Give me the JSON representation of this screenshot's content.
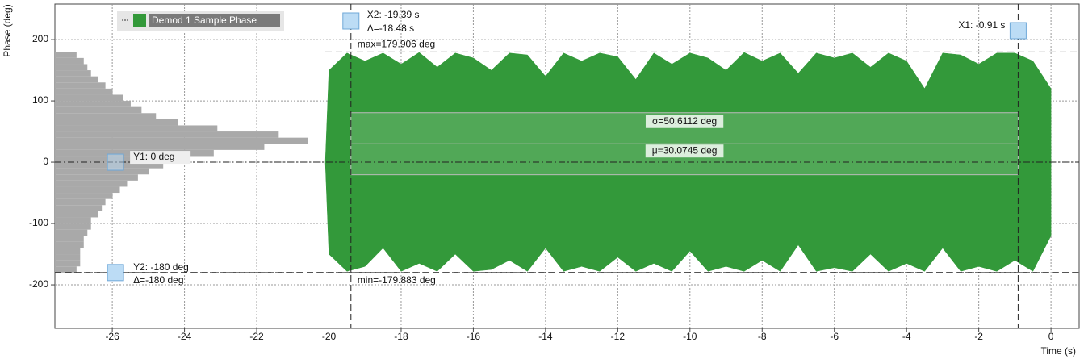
{
  "chart_data": {
    "type": "area",
    "xlabel": "Time (s)",
    "ylabel": "Phase (deg)",
    "xlim": [
      -27.59,
      0.78
    ],
    "ylim": [
      -271,
      258
    ],
    "xticks": [
      -26,
      -24,
      -22,
      -20,
      -18,
      -16,
      -14,
      -12,
      -10,
      -8,
      -6,
      -4,
      -2,
      0
    ],
    "yticks": [
      -200,
      -100,
      0,
      100,
      200
    ],
    "grid": true,
    "x": [
      -20.1,
      -20,
      -19.5,
      -19,
      -18.5,
      -18,
      -17.5,
      -17,
      -16.5,
      -16,
      -15.5,
      -15,
      -14.5,
      -14,
      -13.5,
      -13,
      -12.5,
      -12,
      -11.5,
      -11,
      -10.5,
      -10,
      -9.5,
      -9,
      -8.5,
      -8,
      -7.5,
      -7,
      -6.5,
      -6,
      -5.5,
      -5,
      -4.5,
      -4,
      -3.5,
      -3,
      -2.5,
      -2,
      -1.5,
      -1,
      -0.5,
      0
    ],
    "series": [
      {
        "name": "Demod 1 Sample Phase",
        "color": "#33993a",
        "upper": [
          0,
          150,
          178,
          165,
          178,
          160,
          179,
          155,
          178,
          170,
          150,
          178,
          175,
          140,
          178,
          165,
          178,
          172,
          135,
          178,
          160,
          178,
          170,
          150,
          179,
          165,
          178,
          145,
          178,
          170,
          178,
          155,
          178,
          165,
          120,
          178,
          175,
          160,
          178,
          178,
          165,
          120
        ],
        "lower": [
          0,
          -150,
          -178,
          -170,
          -140,
          -178,
          -165,
          -178,
          -150,
          -178,
          -175,
          -160,
          -178,
          -140,
          -178,
          -170,
          -178,
          -155,
          -178,
          -165,
          -178,
          -145,
          -178,
          -170,
          -178,
          -160,
          -178,
          -135,
          -178,
          -172,
          -178,
          -150,
          -178,
          -165,
          -178,
          -140,
          -178,
          -170,
          -178,
          -160,
          -178,
          -120
        ]
      }
    ],
    "histogram": {
      "color": "#a9a9a9",
      "bins": [
        -180,
        -170,
        -160,
        -150,
        -140,
        -130,
        -120,
        -110,
        -100,
        -90,
        -80,
        -70,
        -60,
        -50,
        -40,
        -30,
        -20,
        -10,
        0,
        10,
        20,
        30,
        40,
        50,
        60,
        70,
        80,
        90,
        100,
        110,
        120,
        130,
        140,
        150,
        160,
        170,
        180
      ],
      "counts": [
        0.6,
        0.7,
        0.7,
        0.7,
        0.8,
        0.8,
        0.9,
        1.0,
        1.0,
        1.2,
        1.3,
        1.4,
        1.6,
        1.8,
        2.0,
        2.3,
        2.6,
        3.0,
        3.4,
        4.4,
        5.8,
        7.0,
        6.2,
        4.5,
        3.4,
        2.8,
        2.4,
        2.1,
        1.9,
        1.6,
        1.4,
        1.2,
        1.0,
        0.9,
        0.8,
        0.6
      ]
    },
    "statistics": {
      "max": 179.906,
      "max_label": "max=179.906 deg",
      "min": -179.883,
      "min_label": "min=-179.883 deg",
      "mean": 30.0745,
      "mean_label": "μ=30.0745 deg",
      "sigma": 50.6112,
      "sigma_label": "σ=50.6112 deg"
    },
    "cursors": {
      "x1": -0.91,
      "x1_label": "X1: -0.91 s",
      "x2": -19.39,
      "x2_label": "X2: -19.39 s",
      "x_delta_label": "Δ=-18.48 s",
      "y1": 0,
      "y1_label": "Y1: 0 deg",
      "y2": -180,
      "y2_label": "Y2: -180 deg",
      "y_delta_label": "Δ=-180 deg"
    }
  }
}
